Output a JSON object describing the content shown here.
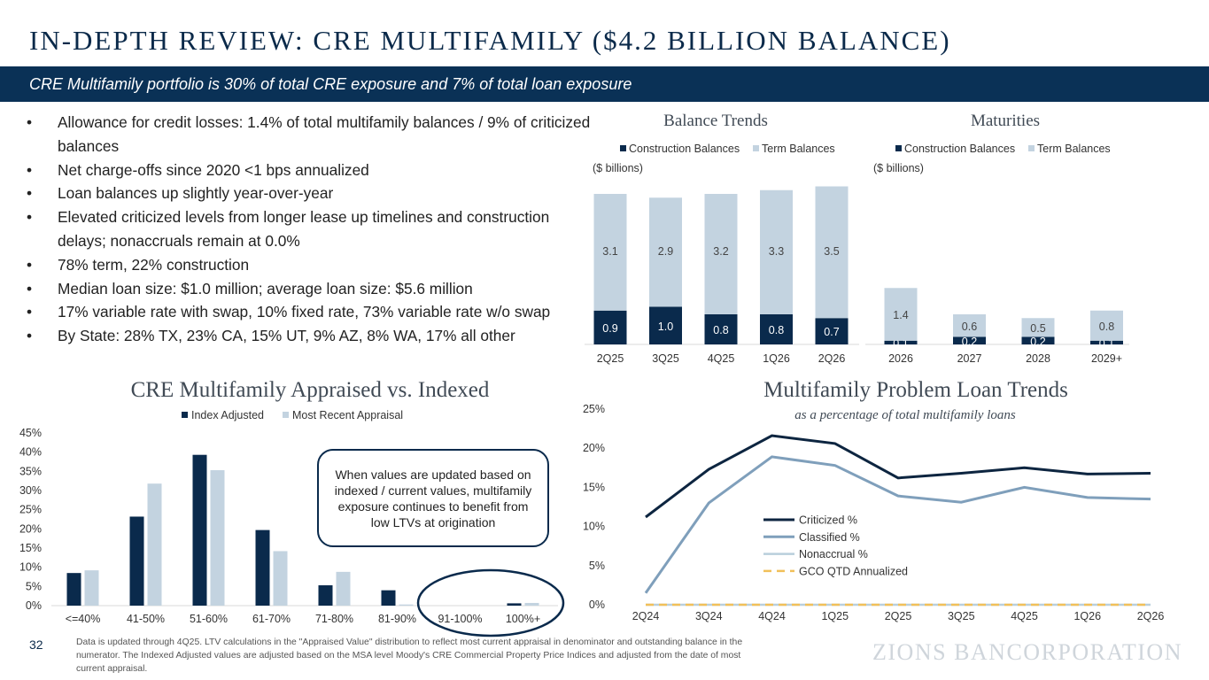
{
  "header": {
    "title": "IN-DEPTH REVIEW: CRE MULTIFAMILY ($4.2 BILLION BALANCE)",
    "subtitle": "CRE Multifamily portfolio is 30% of total CRE exposure and 7% of total loan exposure"
  },
  "bullets": [
    "Allowance for credit losses: 1.4% of total multifamily balances / 9% of criticized balances",
    "Net charge-offs since 2020 <1 bps annualized",
    "Loan balances up slightly year-over-year",
    "Elevated criticized levels from longer lease up timelines and construction delays; nonaccruals remain at 0.0%",
    "78% term, 22% construction",
    "Median loan size: $1.0 million; average loan size: $5.6 million",
    "17% variable rate with swap, 10% fixed rate, 73% variable rate w/o swap",
    "By State: 28% TX, 23% CA, 15% UT, 9% AZ, 8% WA, 17% all other"
  ],
  "colors": {
    "navy": "#0a2a4c",
    "light": "#c3d3e0",
    "criticized": "#0d2540",
    "classified": "#7f9fbb",
    "nonaccrual": "#b9cfdc",
    "gco": "#f1c05a",
    "banner": "#0a3156"
  },
  "callout": "When values are updated based on indexed / current values, multifamily exposure continues to benefit from low LTVs at origination",
  "footer": {
    "page": "32",
    "note": "Data is updated through 4Q25.  LTV calculations in the \"Appraised Value\" distribution to reflect most current appraisal in denominator and outstanding balance in the numerator. The Indexed Adjusted values are adjusted based on the MSA level Moody's CRE Commercial Property Price Indices and adjusted from the date of most current appraisal.",
    "logo": "ZIONS BANCORPORATION"
  },
  "chart_data": [
    {
      "id": "balance",
      "type": "bar",
      "stacked": true,
      "title": "Balance Trends",
      "unit_note": "($ billions)",
      "legend": "top",
      "categories": [
        "2Q25",
        "3Q25",
        "4Q25",
        "1Q26",
        "2Q26"
      ],
      "series": [
        {
          "name": "Construction Balances",
          "values": [
            0.9,
            1.0,
            0.8,
            0.8,
            0.7
          ],
          "labels": [
            "0.9",
            "1.0",
            "0.8",
            "0.8",
            "0.7"
          ]
        },
        {
          "name": "Term Balances",
          "values": [
            3.1,
            2.9,
            3.2,
            3.3,
            3.5
          ],
          "labels": [
            "3.1",
            "2.9",
            "3.2",
            "3.3",
            "3.5"
          ]
        }
      ],
      "ylim": [
        0,
        4.2
      ]
    },
    {
      "id": "maturities",
      "type": "bar",
      "stacked": true,
      "title": "Maturities",
      "unit_note": "($ billions)",
      "legend": "top",
      "categories": [
        "2026",
        "2027",
        "2028",
        "2029+"
      ],
      "series": [
        {
          "name": "Construction Balances",
          "values": [
            0.1,
            0.2,
            0.2,
            0.1
          ],
          "labels": [
            "0.1",
            "0.2",
            "0.2",
            "0.1"
          ]
        },
        {
          "name": "Term Balances",
          "values": [
            1.4,
            0.6,
            0.5,
            0.8
          ],
          "labels": [
            "1.4",
            "0.6",
            "0.5",
            "0.8"
          ]
        }
      ],
      "ylim": [
        0,
        4.2
      ]
    },
    {
      "id": "appraised",
      "type": "bar",
      "title": "CRE Multifamily Appraised vs. Indexed",
      "legend": "top",
      "categories": [
        "<=40%",
        "41-50%",
        "51-60%",
        "61-70%",
        "71-80%",
        "81-90%",
        "91-100%",
        "100%+"
      ],
      "series": [
        {
          "name": "Index Adjusted",
          "values": [
            8.5,
            23.2,
            39.3,
            19.7,
            5.3,
            4.0,
            0.0,
            0.6
          ]
        },
        {
          "name": "Most Recent Appraisal",
          "values": [
            9.2,
            31.8,
            35.3,
            14.2,
            8.8,
            0.3,
            0.0,
            0.7
          ]
        }
      ],
      "yticks": [
        "0%",
        "5%",
        "10%",
        "15%",
        "20%",
        "25%",
        "30%",
        "35%",
        "40%",
        "45%"
      ],
      "ylim": [
        0,
        45
      ]
    },
    {
      "id": "problem",
      "type": "line",
      "title": "Multifamily Problem Loan Trends",
      "subtitle": "as a percentage of total multifamily loans",
      "legend": "inside-center",
      "categories": [
        "2Q24",
        "3Q24",
        "4Q24",
        "1Q25",
        "2Q25",
        "3Q25",
        "4Q25",
        "1Q26",
        "2Q26"
      ],
      "series": [
        {
          "name": "Criticized %",
          "values": [
            11.2,
            17.3,
            21.6,
            20.6,
            16.2,
            16.8,
            17.5,
            16.7,
            16.8
          ]
        },
        {
          "name": "Classified %",
          "values": [
            1.5,
            13.0,
            18.9,
            17.8,
            13.9,
            13.1,
            15.0,
            13.7,
            13.5
          ]
        },
        {
          "name": "Nonaccrual %",
          "values": [
            0.0,
            0.0,
            0.0,
            0.0,
            0.0,
            0.0,
            0.0,
            0.0,
            0.0
          ]
        },
        {
          "name": "GCO QTD Annualized",
          "values": [
            0.0,
            0.0,
            0.0,
            0.0,
            0.0,
            0.0,
            0.0,
            0.0,
            0.0
          ]
        }
      ],
      "yticks": [
        "0%",
        "5%",
        "10%",
        "15%",
        "20%",
        "25%"
      ],
      "ylim": [
        0,
        25
      ]
    }
  ]
}
